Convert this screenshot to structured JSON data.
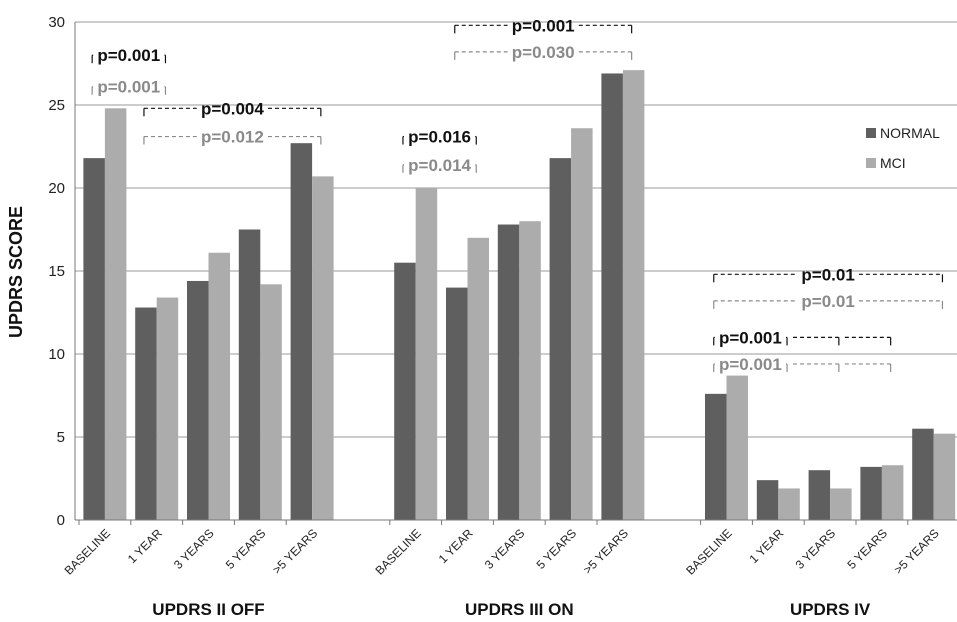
{
  "chart_data": {
    "type": "bar",
    "ylabel": "UPDRS SCORE",
    "ylim": [
      0,
      30
    ],
    "yticks": [
      0,
      5,
      10,
      15,
      20,
      25,
      30
    ],
    "grid": true,
    "legend_position": "right",
    "colors": {
      "NORMAL": "#5f5f5f",
      "MCI": "#acacac",
      "sig_normal": "#111111",
      "sig_mci": "#8a8a8a",
      "grid": "#9a9a9a"
    },
    "groups": [
      {
        "label": "UPDRS II OFF",
        "categories": [
          "BASELINE",
          "1 YEAR",
          "3 YEARS",
          "5 YEARS",
          ">5 YEARS"
        ],
        "series": [
          {
            "name": "NORMAL",
            "values": [
              21.8,
              12.8,
              14.4,
              17.5,
              22.7
            ]
          },
          {
            "name": "MCI",
            "values": [
              24.8,
              13.4,
              16.1,
              14.2,
              20.7
            ]
          }
        ]
      },
      {
        "label": "UPDRS III ON",
        "categories": [
          "BASELINE",
          "1 YEAR",
          "3 YEARS",
          "5 YEARS",
          ">5 YEARS"
        ],
        "series": [
          {
            "name": "NORMAL",
            "values": [
              15.5,
              14.0,
              17.8,
              21.8,
              26.9
            ]
          },
          {
            "name": "MCI",
            "values": [
              20.0,
              17.0,
              18.0,
              23.6,
              27.1
            ]
          }
        ]
      },
      {
        "label": "UPDRS IV",
        "categories": [
          "BASELINE",
          "1 YEAR",
          "3 YEARS",
          "5 YEARS",
          ">5 YEARS"
        ],
        "series": [
          {
            "name": "NORMAL",
            "values": [
              7.6,
              2.4,
              3.0,
              3.2,
              5.5
            ]
          },
          {
            "name": "MCI",
            "values": [
              8.7,
              1.9,
              1.9,
              3.3,
              5.2
            ]
          }
        ]
      }
    ],
    "annotations": [
      {
        "text": "p=0.001",
        "group": 0,
        "from": 0,
        "to": 1,
        "y": 28.0,
        "series": "NORMAL"
      },
      {
        "text": "p=0.001",
        "group": 0,
        "from": 0,
        "to": 1,
        "y": 26.1,
        "series": "MCI"
      },
      {
        "text": "p=0.004",
        "group": 0,
        "from": 1,
        "to": 4,
        "y": 24.8,
        "series": "NORMAL"
      },
      {
        "text": "p=0.012",
        "group": 0,
        "from": 1,
        "to": 4,
        "y": 23.1,
        "series": "MCI"
      },
      {
        "text": "p=0.001",
        "group": 1,
        "from": 1,
        "to": 4,
        "y": 29.8,
        "series": "NORMAL"
      },
      {
        "text": "p=0.030",
        "group": 1,
        "from": 1,
        "to": 4,
        "y": 28.2,
        "series": "MCI"
      },
      {
        "text": "p=0.016",
        "group": 1,
        "from": 0,
        "to": 1,
        "y": 23.1,
        "series": "NORMAL"
      },
      {
        "text": "p=0.014",
        "group": 1,
        "from": 0,
        "to": 1,
        "y": 21.4,
        "series": "MCI"
      },
      {
        "text": "p=0.01",
        "group": 2,
        "from": 0,
        "to": 4,
        "y": 14.8,
        "series": "NORMAL"
      },
      {
        "text": "p=0.01",
        "group": 2,
        "from": 0,
        "to": 4,
        "y": 13.2,
        "series": "MCI"
      },
      {
        "text": "p=0.001",
        "group": 2,
        "from": 0,
        "to": 1,
        "y": 11.0,
        "series": "NORMAL",
        "extend_to": [
          2,
          3
        ]
      },
      {
        "text": "p=0.001",
        "group": 2,
        "from": 0,
        "to": 1,
        "y": 9.4,
        "series": "MCI",
        "extend_to": [
          2,
          3
        ]
      }
    ]
  }
}
